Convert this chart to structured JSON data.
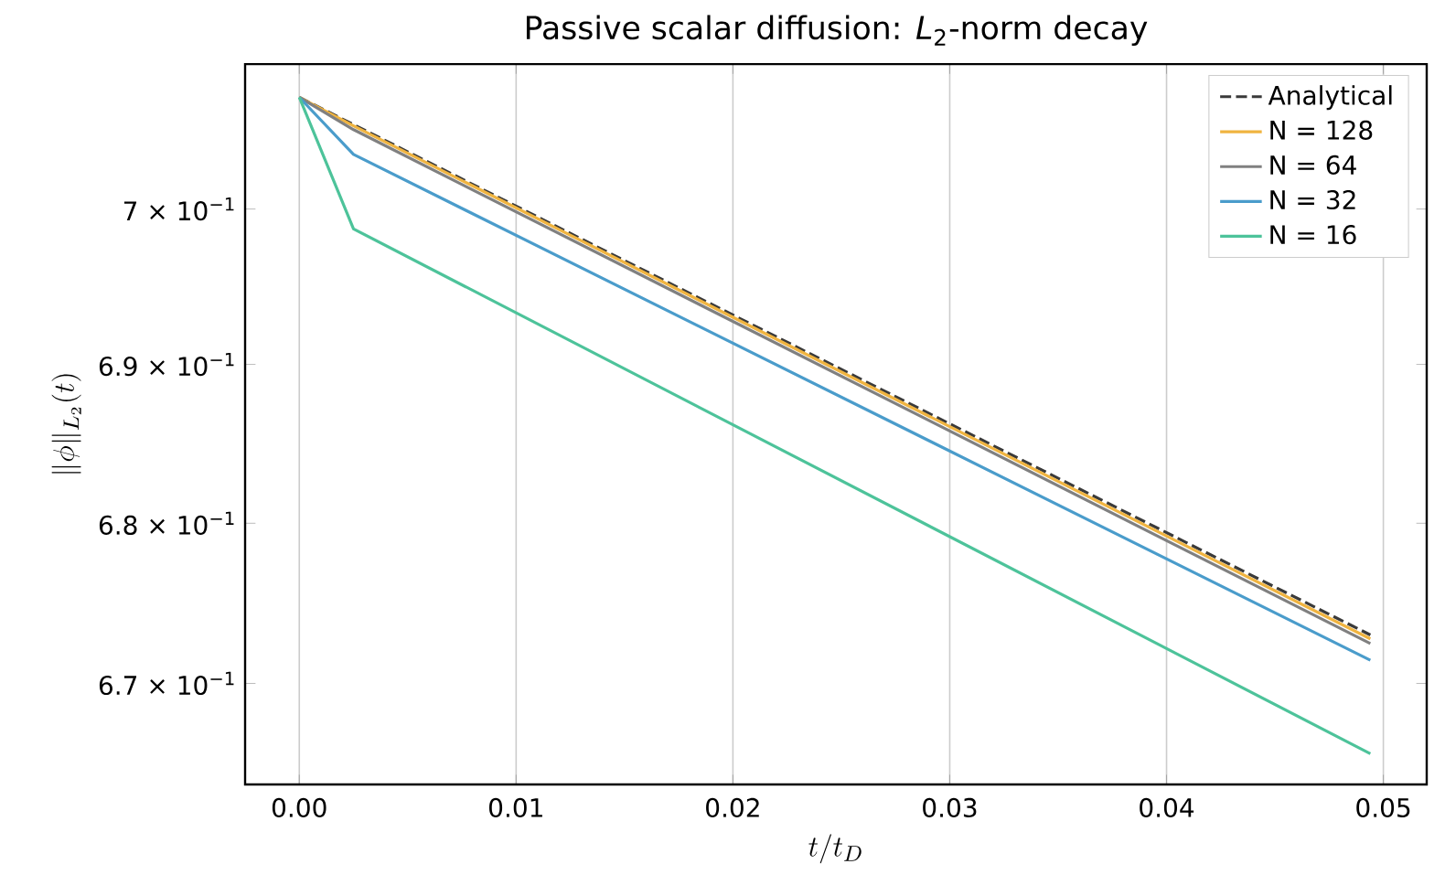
{
  "chart_data": {
    "type": "line",
    "title": "Passive scalar diffusion: *L*$_{2}$-norm decay",
    "xlabel": "t/t_D",
    "ylabel": "\\|\\phi\\|_{L_2}(t)",
    "log": "y",
    "grid": "x",
    "legend": "top right",
    "marker": "none",
    "xlim": [
      -0.0025,
      0.052
    ],
    "ylim": [
      0.6638,
      0.7094
    ],
    "xticks": [
      {
        "value": 0,
        "label": "0.00"
      },
      0.01,
      0.02,
      0.03,
      0.04,
      0.05
    ],
    "yticks": [
      {
        "value": 0.67,
        "label": "6.7 × 10$^{−1}$"
      },
      {
        "value": 0.68,
        "label": "6.8 × 10$^{−1}$"
      },
      {
        "value": 0.69,
        "label": "6.9 × 10$^{−1}$"
      },
      {
        "value": 0.7,
        "label": "7 × 10$^{−1}$"
      }
    ],
    "series": [
      {
        "name": "Analytical",
        "color": "#3a3a3a",
        "line_style": "dashed",
        "x": [
          0,
          0.0494
        ],
        "values": [
          0.7072,
          0.673
        ]
      },
      {
        "name": "N = 128",
        "color": "#f0b440",
        "line_style": "solid",
        "x": [
          0,
          0.0025,
          0.0494
        ],
        "values": [
          0.7072,
          0.7054,
          0.6728
        ]
      },
      {
        "name": "N = 64",
        "color": "#808080",
        "line_style": "solid",
        "x": [
          0,
          0.0025,
          0.0494
        ],
        "values": [
          0.7072,
          0.7051,
          0.6725
        ]
      },
      {
        "name": "N = 32",
        "color": "#4a9ccb",
        "line_style": "solid",
        "x": [
          0,
          0.0025,
          0.0494
        ],
        "values": [
          0.7072,
          0.7035,
          0.6714
        ]
      },
      {
        "name": "N = 16",
        "color": "#4dc39a",
        "line_style": "solid",
        "x": [
          0,
          0.0025,
          0.0494
        ],
        "values": [
          0.7072,
          0.6987,
          0.6657
        ]
      }
    ]
  }
}
